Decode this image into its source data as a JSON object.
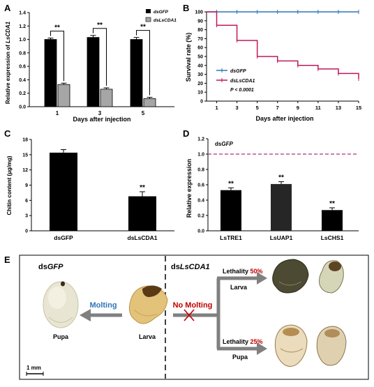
{
  "panels": {
    "A": {
      "letter": "A"
    },
    "B": {
      "letter": "B"
    },
    "C": {
      "letter": "C"
    },
    "D": {
      "letter": "D"
    },
    "E": {
      "letter": "E"
    }
  },
  "colors": {
    "black_bar": "#000000",
    "grey_bar": "#a6a6a6",
    "dark_bar": "#262626",
    "dsgfp_line": "#2e75b6",
    "dslscda1_line": "#c0185a",
    "dashed_ref": "#b0307a",
    "arrow_grey": "#808080",
    "molting_blue": "#2e75b6",
    "no_molting_red": "#c00000"
  },
  "chart_data": [
    {
      "panel": "A",
      "type": "bar",
      "categories": [
        "1",
        "3",
        "5"
      ],
      "series": [
        {
          "name": "dsGFP",
          "values": [
            1.0,
            1.03,
            1.0
          ],
          "errors": [
            0.02,
            0.03,
            0.03
          ]
        },
        {
          "name": "dsLsCDA1",
          "values": [
            0.33,
            0.26,
            0.12
          ],
          "errors": [
            0.02,
            0.02,
            0.02
          ]
        }
      ],
      "significance": [
        "**",
        "**",
        "**"
      ],
      "xlabel": "Days after injection",
      "ylabel_prefix": "Relative expression of ",
      "ylabel_gene": "LsCDA1",
      "ylim": [
        0,
        1.4
      ],
      "yticks": [
        "0.0",
        "0.2",
        "0.4",
        "0.6",
        "0.8",
        "1.0",
        "1.2",
        "1.4"
      ],
      "legend": [
        {
          "label": "dsGFP"
        },
        {
          "label": "dsLsCDA1"
        }
      ],
      "legend_position": "top-right"
    },
    {
      "panel": "B",
      "type": "line",
      "series": [
        {
          "name": "dsGFP",
          "x": [
            0,
            1,
            3,
            5,
            7,
            9,
            11,
            13,
            15
          ],
          "values": [
            100,
            100,
            100,
            100,
            100,
            100,
            100,
            100,
            100
          ]
        },
        {
          "name": "dsLsCDA1",
          "x": [
            0,
            1,
            3,
            5,
            7,
            9,
            11,
            13,
            15
          ],
          "values": [
            100,
            85,
            68,
            50,
            45,
            40,
            36,
            31,
            25
          ]
        }
      ],
      "xlabel": "Days after injection",
      "ylabel": "Survival rate (%)",
      "xticks": [
        "1",
        "3",
        "5",
        "7",
        "9",
        "11",
        "13",
        "15"
      ],
      "ylim": [
        0,
        100
      ],
      "yticks": [
        "0",
        "10",
        "20",
        "30",
        "40",
        "50",
        "60",
        "70",
        "80",
        "90",
        "100"
      ],
      "legend": [
        {
          "label": "dsGFP"
        },
        {
          "label": "dsLsCDA1"
        }
      ],
      "p_value": "P < 0.0001"
    },
    {
      "panel": "C",
      "type": "bar",
      "categories": [
        "dsGFP",
        "dsLsCDA1"
      ],
      "values": [
        15.4,
        6.8
      ],
      "errors": [
        0.6,
        0.9
      ],
      "significance": [
        "",
        "**"
      ],
      "ylabel": "Chitin content (µg/mg)",
      "ylim": [
        0,
        18
      ],
      "yticks": [
        "0",
        "3",
        "6",
        "9",
        "12",
        "15",
        "18"
      ]
    },
    {
      "panel": "D",
      "type": "bar",
      "categories": [
        "LsTRE1",
        "LsUAP1",
        "LsCHS1"
      ],
      "values": [
        0.53,
        0.61,
        0.27
      ],
      "errors": [
        0.03,
        0.03,
        0.03
      ],
      "significance": [
        "**",
        "**",
        "**"
      ],
      "ylabel": "Relative expression",
      "ylim": [
        0,
        1.2
      ],
      "yticks": [
        "0.0",
        "0.2",
        "0.4",
        "0.6",
        "0.8",
        "1.0",
        "1.2"
      ],
      "reference_line": {
        "value": 1.0,
        "label_prefix": "ds",
        "label_gene": "GFP"
      }
    }
  ],
  "panel_E": {
    "left_header_prefix": "ds",
    "left_header_gene": "GFP",
    "right_header_prefix": "ds",
    "right_header_gene": "LsCDA1",
    "molting": "Molting",
    "no_molting": "No Molting",
    "pupa_label": "Pupa",
    "larva_label": "Larva",
    "branch_larva_label": "Larva",
    "branch_pupa_label": "Pupa",
    "lethality_label": "Lethality",
    "lethality_larva": "50%",
    "lethality_pupa": "25%",
    "scale_bar": "1 mm"
  }
}
